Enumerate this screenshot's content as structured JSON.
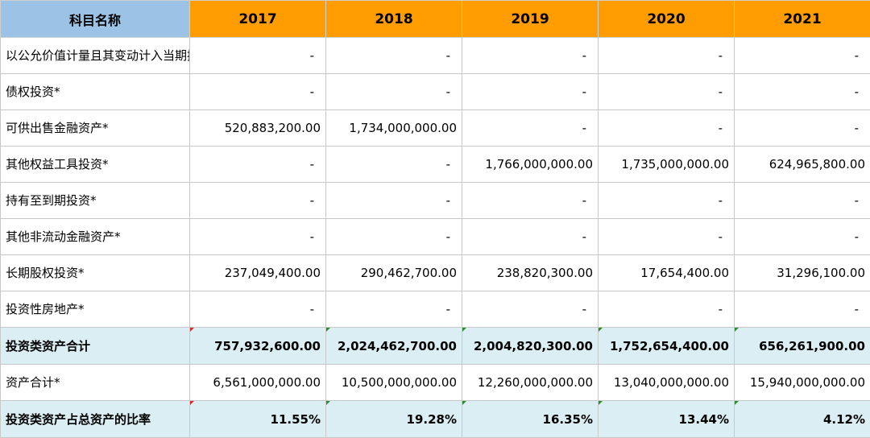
{
  "header": {
    "label": "科目名称",
    "years": [
      "2017",
      "2018",
      "2019",
      "2020",
      "2021"
    ]
  },
  "rows": [
    {
      "label": "以公允价值计量且其变动计入当期损益的金融资产*",
      "values": [
        "-",
        "-",
        "-",
        "-",
        "-"
      ]
    },
    {
      "label": "债权投资*",
      "values": [
        "-",
        "-",
        "-",
        "-",
        "-"
      ]
    },
    {
      "label": "可供出售金融资产*",
      "values": [
        "520,883,200.00",
        "1,734,000,000.00",
        "-",
        "-",
        "-"
      ]
    },
    {
      "label": "其他权益工具投资*",
      "values": [
        "-",
        "-",
        "1,766,000,000.00",
        "1,735,000,000.00",
        "624,965,800.00"
      ]
    },
    {
      "label": "持有至到期投资*",
      "values": [
        "-",
        "-",
        "-",
        "-",
        "-"
      ]
    },
    {
      "label": "其他非流动金融资产*",
      "values": [
        "-",
        "-",
        "-",
        "-",
        "-"
      ]
    },
    {
      "label": "长期股权投资*",
      "values": [
        "237,049,400.00",
        "290,462,700.00",
        "238,820,300.00",
        "17,654,400.00",
        "31,296,100.00"
      ]
    },
    {
      "label": "投资性房地产*",
      "values": [
        "-",
        "-",
        "-",
        "-",
        "-"
      ]
    }
  ],
  "total": {
    "label": "投资类资产合计",
    "values": [
      "757,932,600.00",
      "2,024,462,700.00",
      "2,004,820,300.00",
      "1,752,654,400.00",
      "656,261,900.00"
    ]
  },
  "assets": {
    "label": "资产合计*",
    "values": [
      "6,561,000,000.00",
      "10,500,000,000.00",
      "12,260,000,000.00",
      "13,040,000,000.00",
      "15,940,000,000.00"
    ]
  },
  "ratio": {
    "label": "投资类资产占总资产的比率",
    "values": [
      "11.55%",
      "19.28%",
      "16.35%",
      "13.44%",
      "4.12%"
    ]
  },
  "colors": {
    "header_first": "#9cc3e6",
    "header_years": "#ff9d00",
    "total_rows": "#daeef3",
    "note_marker_green": "#2e8b2e",
    "note_marker_red": "#d42a2a"
  }
}
